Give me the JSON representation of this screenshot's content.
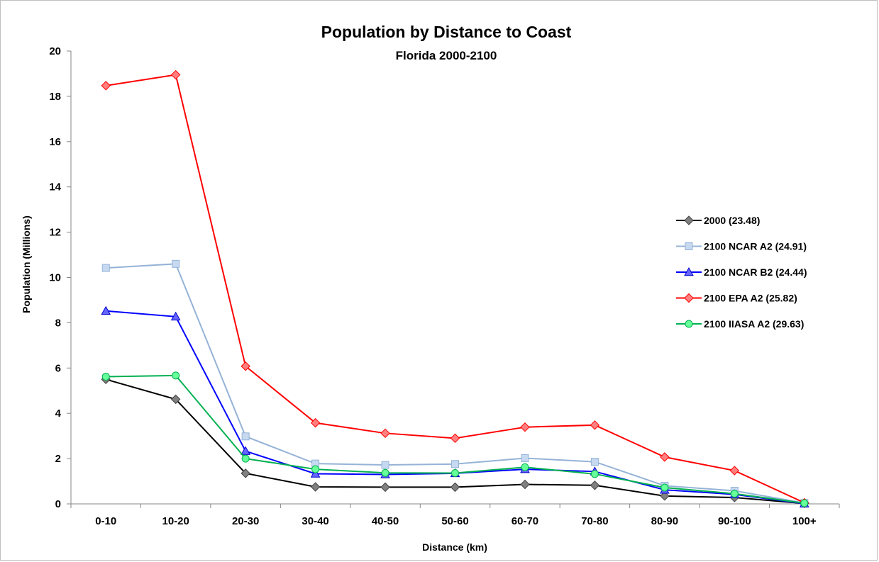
{
  "chart_data": {
    "type": "line",
    "title": "Population by Distance to Coast",
    "subtitle": "Florida 2000-2100",
    "xlabel": "Distance (km)",
    "ylabel": "Population (Millions)",
    "ylim": [
      0,
      20
    ],
    "yticks": [
      "0",
      "2",
      "4",
      "6",
      "8",
      "10",
      "12",
      "14",
      "16",
      "18",
      "20"
    ],
    "grid": false,
    "legend_position": "right",
    "categories": [
      "0-10",
      "10-20",
      "20-30",
      "30-40",
      "40-50",
      "50-60",
      "60-70",
      "70-80",
      "80-90",
      "90-100",
      "100+"
    ],
    "series": [
      {
        "name": "2000 (23.48)",
        "line_color": "#000000",
        "marker": "diamond",
        "marker_fill": "#808080",
        "marker_stroke": "#404040",
        "values": [
          5.5,
          4.62,
          1.35,
          0.75,
          0.74,
          0.74,
          0.86,
          0.82,
          0.35,
          0.28,
          0.02
        ]
      },
      {
        "name": "2100 NCAR A2 (24.91)",
        "line_color": "#95b3d7",
        "marker": "square",
        "marker_fill": "#c6d9f1",
        "marker_stroke": "#95b3d7",
        "values": [
          10.42,
          10.6,
          2.98,
          1.78,
          1.72,
          1.76,
          2.02,
          1.86,
          0.8,
          0.58,
          0.04
        ]
      },
      {
        "name": "2100 NCAR B2 (24.44)",
        "line_color": "#0000ff",
        "marker": "triangle",
        "marker_fill": "#6666ff",
        "marker_stroke": "#0000cc",
        "values": [
          8.52,
          8.27,
          2.33,
          1.33,
          1.3,
          1.35,
          1.53,
          1.43,
          0.62,
          0.42,
          0.01
        ]
      },
      {
        "name": "2100 EPA A2 (25.82)",
        "line_color": "#ff0000",
        "marker": "diamond",
        "marker_fill": "#ff7f7f",
        "marker_stroke": "#ff0000",
        "values": [
          18.47,
          18.95,
          6.08,
          3.58,
          3.12,
          2.9,
          3.39,
          3.48,
          2.07,
          1.47,
          0.05
        ]
      },
      {
        "name": "2100 IIASA A2 (29.63)",
        "line_color": "#00b050",
        "marker": "circle",
        "marker_fill": "#66ff99",
        "marker_stroke": "#00b050",
        "values": [
          5.62,
          5.67,
          2.0,
          1.53,
          1.37,
          1.36,
          1.62,
          1.32,
          0.72,
          0.45,
          0.03
        ]
      }
    ]
  }
}
